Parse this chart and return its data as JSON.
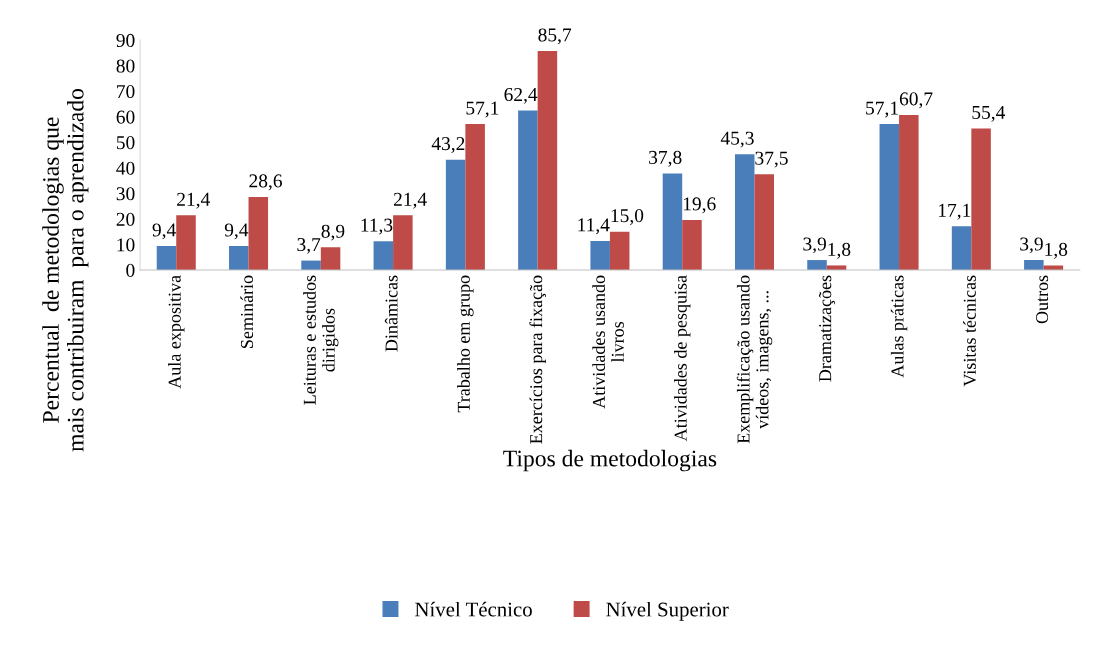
{
  "chart_data": {
    "type": "bar",
    "xlabel": "Tipos de metodologias",
    "ylabel": "Percentual  de metodologias que\nmais contribuiram  para o aprendizado",
    "categories": [
      "Aula expositiva",
      "Seminário",
      "Leituras e estudos\ndirigidos",
      "Dinâmicas",
      "Trabalho em grupo",
      "Exercícios para fixação",
      "Atividades usando\nlivros",
      "Atividades de pesquisa",
      "Exemplificação usando\nvídeos, imagens, ...",
      "Dramatizações",
      "Aulas práticas",
      "Visitas técnicas",
      "Outros"
    ],
    "series": [
      {
        "name": "Nível Técnico",
        "color": "#4a7ebb",
        "values": [
          9.4,
          9.4,
          3.7,
          11.3,
          43.2,
          62.4,
          11.4,
          37.8,
          45.3,
          3.9,
          57.1,
          17.1,
          3.9
        ],
        "value_labels": [
          "9,4",
          "9,4",
          "3,7",
          "11,3",
          "43,2",
          "62,4",
          "11,4",
          "37,8",
          "45,3",
          "3,9",
          "57,1",
          "17,1",
          "3,9"
        ]
      },
      {
        "name": "Nível Superior",
        "color": "#be4b48",
        "values": [
          21.4,
          28.6,
          8.9,
          21.4,
          57.1,
          85.7,
          15.0,
          19.6,
          37.5,
          1.8,
          60.7,
          55.4,
          1.8
        ],
        "value_labels": [
          "21,4",
          "28,6",
          "8,9",
          "21,4",
          "57,1",
          "85,7",
          "15,0",
          "19,6",
          "37,5",
          "1,8",
          "60,7",
          "55,4",
          "1,8"
        ]
      }
    ],
    "ylim": [
      0,
      90
    ],
    "yticks": [
      0,
      10,
      20,
      30,
      40,
      50,
      60,
      70,
      80,
      90
    ],
    "grid": false,
    "legend": "bottom"
  }
}
